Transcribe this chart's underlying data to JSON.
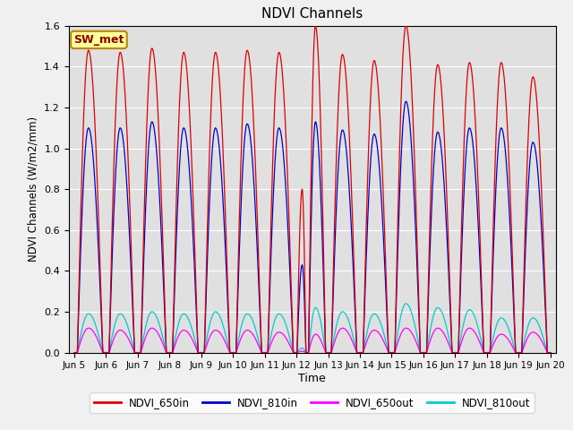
{
  "title": "NDVI Channels",
  "xlabel": "Time",
  "ylabel": "NDVI Channels (W/m2/mm)",
  "ylim": [
    0,
    1.6
  ],
  "xlim": [
    4.83,
    20.17
  ],
  "annotation": "SW_met",
  "plot_bg_color": "#e0e0e0",
  "fig_bg_color": "#f0f0f0",
  "legend_labels": [
    "NDVI_650in",
    "NDVI_810in",
    "NDVI_650out",
    "NDVI_810out"
  ],
  "line_colors": {
    "NDVI_650in": "#dd0000",
    "NDVI_810in": "#0000cc",
    "NDVI_650out": "#ff00ff",
    "NDVI_810out": "#00cccc"
  },
  "xtick_positions": [
    5,
    6,
    7,
    8,
    9,
    10,
    11,
    12,
    13,
    14,
    15,
    16,
    17,
    18,
    19,
    20
  ],
  "xtick_labels": [
    "Jun 5",
    "Jun 6",
    "Jun 7",
    "Jun 8",
    "Jun 9",
    "Jun 10",
    "Jun 11",
    "Jun 12",
    "Jun 13",
    "Jun 14",
    "Jun 15",
    "Jun 16",
    "Jun 17",
    "Jun 18",
    "Jun 19",
    "Jun 20"
  ],
  "ytick_positions": [
    0.0,
    0.2,
    0.4,
    0.6,
    0.8,
    1.0,
    1.2,
    1.4,
    1.6
  ],
  "peaks_650in": [
    1.48,
    1.47,
    1.49,
    1.47,
    1.47,
    1.48,
    1.47,
    1.6,
    1.46,
    1.43,
    1.6,
    1.41,
    1.42,
    1.42,
    1.35
  ],
  "peaks_810in": [
    1.1,
    1.1,
    1.13,
    1.1,
    1.1,
    1.12,
    1.1,
    1.13,
    1.09,
    1.07,
    1.23,
    1.08,
    1.1,
    1.1,
    1.03
  ],
  "peaks_650out": [
    0.12,
    0.11,
    0.12,
    0.11,
    0.11,
    0.11,
    0.1,
    0.09,
    0.12,
    0.11,
    0.12,
    0.12,
    0.12,
    0.09,
    0.1
  ],
  "peaks_810out": [
    0.19,
    0.19,
    0.2,
    0.19,
    0.2,
    0.19,
    0.19,
    0.22,
    0.2,
    0.19,
    0.24,
    0.22,
    0.21,
    0.17,
    0.17
  ],
  "partial_650in_first": 0.5,
  "partial_810in_first": 0.38,
  "partial_650out_first": 0.07,
  "partial_810out_first": 0.1,
  "day_centers": [
    5,
    6,
    7,
    8,
    9,
    10,
    11,
    12,
    13,
    14,
    15,
    16,
    17,
    18,
    19
  ]
}
